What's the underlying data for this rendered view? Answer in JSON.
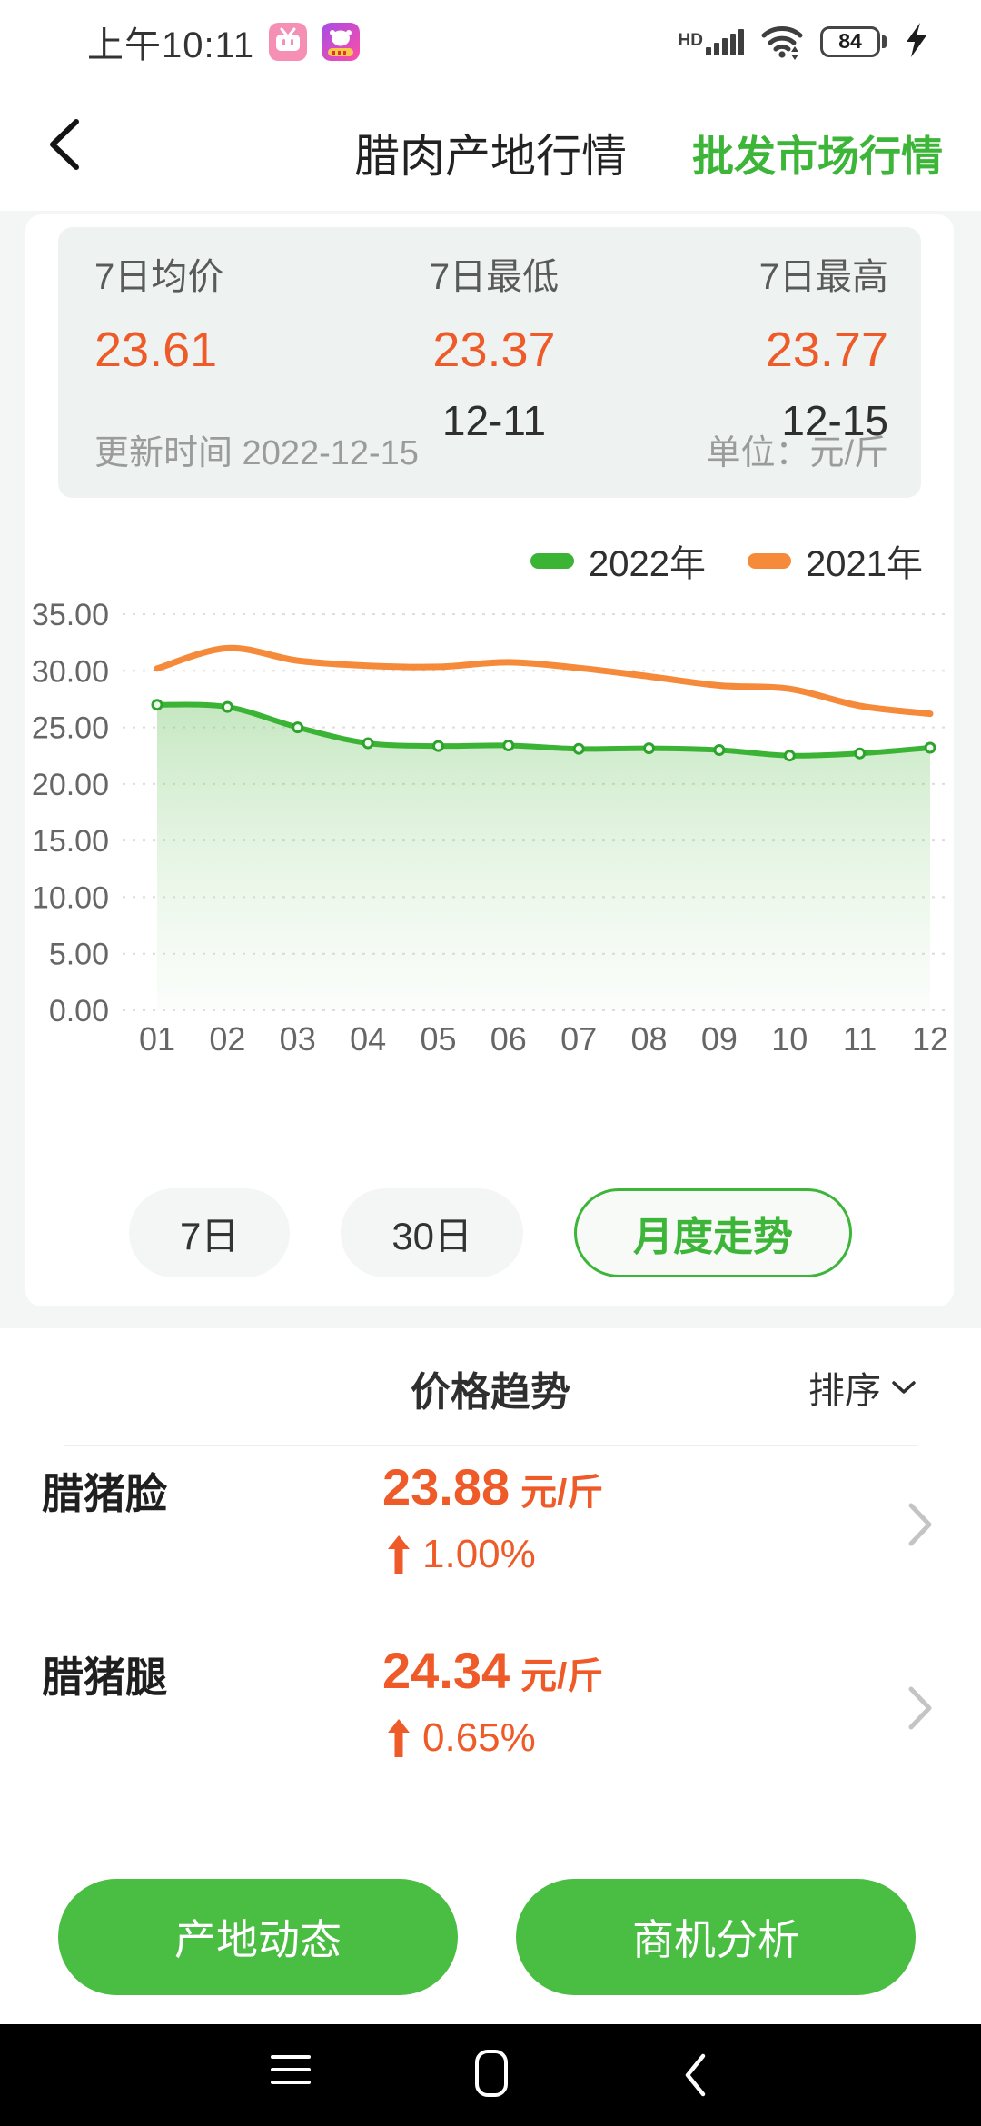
{
  "status_bar": {
    "time": "上午10:11",
    "hd_label": "HD",
    "battery_percent": "84"
  },
  "header": {
    "title": "腊肉产地行情",
    "right_link": "批发市场行情"
  },
  "summary_card": {
    "avg_label": "7日均价",
    "avg_value": "23.61",
    "min_label": "7日最低",
    "min_value": "23.37",
    "min_date": "12-11",
    "max_label": "7日最高",
    "max_value": "23.77",
    "max_date": "12-15",
    "updated": "更新时间 2022-12-15",
    "unit": "单位：元/斤"
  },
  "chart_data": {
    "type": "line",
    "x": [
      "01",
      "02",
      "03",
      "04",
      "05",
      "06",
      "07",
      "08",
      "09",
      "10",
      "11",
      "12"
    ],
    "series": [
      {
        "name": "2022年",
        "color": "#3bb335",
        "markers": true,
        "area": true,
        "values": [
          27.0,
          26.8,
          25.0,
          23.6,
          23.35,
          23.4,
          23.1,
          23.15,
          23.0,
          22.5,
          22.7,
          23.2
        ]
      },
      {
        "name": "2021年",
        "color": "#f58a3b",
        "markers": false,
        "area": false,
        "values": [
          30.2,
          32.0,
          30.9,
          30.45,
          30.35,
          30.75,
          30.25,
          29.5,
          28.7,
          28.4,
          26.9,
          26.2
        ]
      }
    ],
    "ylim": [
      0,
      35
    ],
    "yticks": [
      "0.00",
      "5.00",
      "10.00",
      "15.00",
      "20.00",
      "25.00",
      "30.00",
      "35.00"
    ],
    "grid": "dotted-horizontal",
    "legend_position": "top-right",
    "unit": "元/斤"
  },
  "range_tabs": [
    {
      "label": "7日",
      "active": false
    },
    {
      "label": "30日",
      "active": false
    },
    {
      "label": "月度走势",
      "active": true
    }
  ],
  "price_section": {
    "title": "价格趋势",
    "sort_label": "排序"
  },
  "products": [
    {
      "name": "腊猪脸",
      "price": "23.88",
      "unit": "元/斤",
      "change": "1.00%",
      "direction": "up"
    },
    {
      "name": "腊猪腿",
      "price": "24.34",
      "unit": "元/斤",
      "change": "0.65%",
      "direction": "up"
    }
  ],
  "footer_buttons": {
    "left": "产地动态",
    "right": "商机分析"
  },
  "colors": {
    "accent_green": "#3db538",
    "button_green": "#4abd43",
    "line_green": "#3bb335",
    "line_orange": "#f58a3b",
    "price_orange": "#ee5a28",
    "battery_green": "#5ac158"
  }
}
